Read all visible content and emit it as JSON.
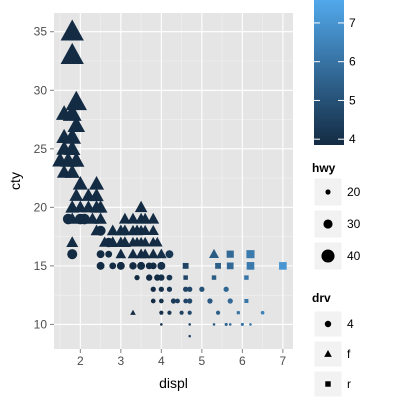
{
  "chart_data": {
    "type": "scatter",
    "xlabel": "displ",
    "ylabel": "cty",
    "xlim": [
      1.35,
      7.25
    ],
    "ylim": [
      7.9,
      36.6
    ],
    "xticks": [
      2,
      3,
      4,
      5,
      6,
      7
    ],
    "yticks": [
      10,
      15,
      20,
      25,
      30,
      35
    ],
    "grid": true,
    "background": "#e5e5e5",
    "grid_major": "#ffffff",
    "grid_minor": "#f2f2f2",
    "legends": {
      "color": {
        "scale_var": "hwy_x",
        "title": "",
        "ticks": [
          4,
          5,
          6,
          7
        ],
        "range": [
          3.85,
          7.85
        ],
        "low": "#132b43",
        "high": "#56b1f7",
        "placement": "right"
      },
      "size": {
        "title": "hwy",
        "entries": [
          {
            "label": "20",
            "value": 20
          },
          {
            "label": "30",
            "value": 30
          },
          {
            "label": "40",
            "value": 40
          }
        ],
        "placement": "right"
      },
      "shape": {
        "title": "drv",
        "entries": [
          {
            "label": "4",
            "shape": "circle"
          },
          {
            "label": "f",
            "shape": "triangle"
          },
          {
            "label": "r",
            "shape": "square"
          }
        ],
        "placement": "right"
      }
    },
    "points": [
      {
        "x": 1.8,
        "y": 35,
        "hwy": 44,
        "drv": "f",
        "c": 1.8
      },
      {
        "x": 1.8,
        "y": 33,
        "hwy": 44,
        "drv": "f",
        "c": 1.8
      },
      {
        "x": 1.9,
        "y": 29,
        "hwy": 41,
        "drv": "f",
        "c": 1.9
      },
      {
        "x": 1.6,
        "y": 28,
        "hwy": 33,
        "drv": "f",
        "c": 1.6
      },
      {
        "x": 1.8,
        "y": 28,
        "hwy": 37,
        "drv": "f",
        "c": 1.8
      },
      {
        "x": 1.9,
        "y": 27,
        "hwy": 35,
        "drv": "f",
        "c": 1.9
      },
      {
        "x": 1.6,
        "y": 26,
        "hwy": 32,
        "drv": "f",
        "c": 1.6
      },
      {
        "x": 1.8,
        "y": 26,
        "hwy": 35,
        "drv": "f",
        "c": 1.8
      },
      {
        "x": 1.6,
        "y": 25,
        "hwy": 32,
        "drv": "f",
        "c": 1.6
      },
      {
        "x": 1.8,
        "y": 25,
        "hwy": 33,
        "drv": "f",
        "c": 1.8
      },
      {
        "x": 1.5,
        "y": 24,
        "hwy": 32,
        "drv": "f",
        "c": 1.5
      },
      {
        "x": 1.7,
        "y": 24,
        "hwy": 33,
        "drv": "f",
        "c": 1.7
      },
      {
        "x": 1.9,
        "y": 24,
        "hwy": 33,
        "drv": "f",
        "c": 1.9
      },
      {
        "x": 1.6,
        "y": 23,
        "hwy": 30,
        "drv": "f",
        "c": 1.6
      },
      {
        "x": 1.8,
        "y": 23,
        "hwy": 31,
        "drv": "f",
        "c": 1.8
      },
      {
        "x": 2.0,
        "y": 22,
        "hwy": 31,
        "drv": "f",
        "c": 2.0
      },
      {
        "x": 2.4,
        "y": 22,
        "hwy": 31,
        "drv": "f",
        "c": 2.4
      },
      {
        "x": 1.9,
        "y": 21,
        "hwy": 29,
        "drv": "f",
        "c": 1.9
      },
      {
        "x": 2.2,
        "y": 21,
        "hwy": 29,
        "drv": "f",
        "c": 2.2
      },
      {
        "x": 2.4,
        "y": 21,
        "hwy": 30,
        "drv": "f",
        "c": 2.4
      },
      {
        "x": 1.8,
        "y": 20,
        "hwy": 29,
        "drv": "f",
        "c": 1.8
      },
      {
        "x": 2.0,
        "y": 20,
        "hwy": 28,
        "drv": "f",
        "c": 2.0
      },
      {
        "x": 2.2,
        "y": 20,
        "hwy": 28,
        "drv": "f",
        "c": 2.2
      },
      {
        "x": 2.4,
        "y": 20,
        "hwy": 29,
        "drv": "f",
        "c": 2.4
      },
      {
        "x": 2.5,
        "y": 20,
        "hwy": 29,
        "drv": "f",
        "c": 2.5
      },
      {
        "x": 1.7,
        "y": 19,
        "hwy": 27,
        "drv": "4",
        "c": 1.7
      },
      {
        "x": 1.8,
        "y": 19,
        "hwy": 27,
        "drv": "f",
        "c": 1.8
      },
      {
        "x": 2.0,
        "y": 19,
        "hwy": 27,
        "drv": "4",
        "c": 2.0
      },
      {
        "x": 2.1,
        "y": 19,
        "hwy": 27,
        "drv": "4",
        "c": 2.1
      },
      {
        "x": 2.3,
        "y": 19,
        "hwy": 27,
        "drv": "f",
        "c": 2.3
      },
      {
        "x": 2.5,
        "y": 19,
        "hwy": 27,
        "drv": "f",
        "c": 2.5
      },
      {
        "x": 2.4,
        "y": 18,
        "hwy": 26,
        "drv": "f",
        "c": 2.4
      },
      {
        "x": 2.5,
        "y": 18,
        "hwy": 26,
        "drv": "4",
        "c": 2.5
      },
      {
        "x": 2.6,
        "y": 17,
        "hwy": 25,
        "drv": "f",
        "c": 2.6
      },
      {
        "x": 1.8,
        "y": 17,
        "hwy": 26,
        "drv": "f",
        "c": 1.8
      },
      {
        "x": 2.7,
        "y": 17,
        "hwy": 25,
        "drv": "4",
        "c": 2.7
      },
      {
        "x": 2.8,
        "y": 18,
        "hwy": 26,
        "drv": "f",
        "c": 2.8
      },
      {
        "x": 2.8,
        "y": 17,
        "hwy": 26,
        "drv": "f",
        "c": 2.8
      },
      {
        "x": 3.0,
        "y": 18,
        "hwy": 26,
        "drv": "f",
        "c": 3.0
      },
      {
        "x": 3.0,
        "y": 17,
        "hwy": 25,
        "drv": "f",
        "c": 3.0
      },
      {
        "x": 3.1,
        "y": 18,
        "hwy": 26,
        "drv": "f",
        "c": 3.1
      },
      {
        "x": 3.1,
        "y": 17,
        "hwy": 26,
        "drv": "f",
        "c": 3.1
      },
      {
        "x": 3.3,
        "y": 18,
        "hwy": 25,
        "drv": "f",
        "c": 3.3
      },
      {
        "x": 3.3,
        "y": 17,
        "hwy": 24,
        "drv": "f",
        "c": 3.3
      },
      {
        "x": 3.4,
        "y": 18,
        "hwy": 26,
        "drv": "f",
        "c": 3.4
      },
      {
        "x": 3.4,
        "y": 17,
        "hwy": 24,
        "drv": "f",
        "c": 3.4
      },
      {
        "x": 3.5,
        "y": 18,
        "hwy": 25,
        "drv": "f",
        "c": 3.5
      },
      {
        "x": 3.5,
        "y": 17,
        "hwy": 24,
        "drv": "f",
        "c": 3.5
      },
      {
        "x": 3.6,
        "y": 18,
        "hwy": 25,
        "drv": "f",
        "c": 3.6
      },
      {
        "x": 3.6,
        "y": 17,
        "hwy": 24,
        "drv": "f",
        "c": 3.6
      },
      {
        "x": 3.8,
        "y": 18,
        "hwy": 25,
        "drv": "f",
        "c": 3.8
      },
      {
        "x": 3.8,
        "y": 17,
        "hwy": 24,
        "drv": "f",
        "c": 3.8
      },
      {
        "x": 3.9,
        "y": 17,
        "hwy": 24,
        "drv": "f",
        "c": 3.9
      },
      {
        "x": 3.1,
        "y": 19,
        "hwy": 26,
        "drv": "f",
        "c": 3.1
      },
      {
        "x": 3.3,
        "y": 19,
        "hwy": 26,
        "drv": "f",
        "c": 3.3
      },
      {
        "x": 3.5,
        "y": 19,
        "hwy": 26,
        "drv": "f",
        "c": 3.5
      },
      {
        "x": 3.6,
        "y": 19,
        "hwy": 26,
        "drv": "f",
        "c": 3.6
      },
      {
        "x": 3.8,
        "y": 19,
        "hwy": 26,
        "drv": "f",
        "c": 3.8
      },
      {
        "x": 3.0,
        "y": 16,
        "hwy": 24,
        "drv": "f",
        "c": 3.0
      },
      {
        "x": 3.3,
        "y": 16,
        "hwy": 24,
        "drv": "f",
        "c": 3.3
      },
      {
        "x": 3.5,
        "y": 16,
        "hwy": 24,
        "drv": "f",
        "c": 3.5
      },
      {
        "x": 3.6,
        "y": 16,
        "hwy": 24,
        "drv": "f",
        "c": 3.6
      },
      {
        "x": 3.8,
        "y": 16,
        "hwy": 24,
        "drv": "f",
        "c": 3.8
      },
      {
        "x": 4.0,
        "y": 16,
        "hwy": 24,
        "drv": "f",
        "c": 4.0
      },
      {
        "x": 3.5,
        "y": 20,
        "hwy": 27,
        "drv": "f",
        "c": 3.5
      },
      {
        "x": 1.8,
        "y": 16,
        "hwy": 26,
        "drv": "4",
        "c": 1.8
      },
      {
        "x": 2.5,
        "y": 16,
        "hwy": 22,
        "drv": "4",
        "c": 2.5
      },
      {
        "x": 2.7,
        "y": 16,
        "hwy": 20,
        "drv": "4",
        "c": 2.7
      },
      {
        "x": 2.5,
        "y": 15,
        "hwy": 22,
        "drv": "4",
        "c": 2.5
      },
      {
        "x": 2.8,
        "y": 15,
        "hwy": 20,
        "drv": "4",
        "c": 2.8
      },
      {
        "x": 3.0,
        "y": 15,
        "hwy": 22,
        "drv": "4",
        "c": 3.0
      },
      {
        "x": 3.3,
        "y": 15,
        "hwy": 21,
        "drv": "4",
        "c": 3.3
      },
      {
        "x": 3.5,
        "y": 15,
        "hwy": 22,
        "drv": "4",
        "c": 3.5
      },
      {
        "x": 3.7,
        "y": 15,
        "hwy": 20,
        "drv": "4",
        "c": 3.7
      },
      {
        "x": 3.8,
        "y": 15,
        "hwy": 20,
        "drv": "4",
        "c": 3.8
      },
      {
        "x": 4.0,
        "y": 15,
        "hwy": 22,
        "drv": "4",
        "c": 4.0
      },
      {
        "x": 4.0,
        "y": 15,
        "hwy": 20,
        "drv": "r",
        "c": 4.0
      },
      {
        "x": 4.2,
        "y": 16,
        "hwy": 22,
        "drv": "4",
        "c": 4.2
      },
      {
        "x": 3.7,
        "y": 14,
        "hwy": 19,
        "drv": "4",
        "c": 3.7
      },
      {
        "x": 3.9,
        "y": 14,
        "hwy": 19,
        "drv": "4",
        "c": 3.9
      },
      {
        "x": 4.0,
        "y": 14,
        "hwy": 19,
        "drv": "4",
        "c": 4.0
      },
      {
        "x": 4.2,
        "y": 14,
        "hwy": 18,
        "drv": "4",
        "c": 4.2
      },
      {
        "x": 3.4,
        "y": 14,
        "hwy": 17,
        "drv": "4",
        "c": 3.4
      },
      {
        "x": 3.8,
        "y": 13,
        "hwy": 17,
        "drv": "4",
        "c": 3.8
      },
      {
        "x": 4.0,
        "y": 13,
        "hwy": 17,
        "drv": "4",
        "c": 4.0
      },
      {
        "x": 4.2,
        "y": 13,
        "hwy": 17,
        "drv": "4",
        "c": 4.2
      },
      {
        "x": 3.8,
        "y": 12,
        "hwy": 16,
        "drv": "4",
        "c": 3.8
      },
      {
        "x": 4.0,
        "y": 12,
        "hwy": 16,
        "drv": "4",
        "c": 4.0
      },
      {
        "x": 3.3,
        "y": 11,
        "hwy": 16,
        "drv": "f",
        "c": 3.3
      },
      {
        "x": 4.0,
        "y": 11,
        "hwy": 15,
        "drv": "4",
        "c": 4.0
      },
      {
        "x": 4.6,
        "y": 15,
        "hwy": 20,
        "drv": "r",
        "c": 4.6
      },
      {
        "x": 5.3,
        "y": 16,
        "hwy": 23,
        "drv": "f",
        "c": 5.3
      },
      {
        "x": 5.7,
        "y": 16,
        "hwy": 23,
        "drv": "r",
        "c": 5.7
      },
      {
        "x": 6.2,
        "y": 16,
        "hwy": 25,
        "drv": "r",
        "c": 6.2
      },
      {
        "x": 5.7,
        "y": 15,
        "hwy": 22,
        "drv": "r",
        "c": 5.7
      },
      {
        "x": 6.2,
        "y": 15,
        "hwy": 24,
        "drv": "r",
        "c": 6.2
      },
      {
        "x": 7.0,
        "y": 15,
        "hwy": 24,
        "drv": "r",
        "c": 7.0
      },
      {
        "x": 5.4,
        "y": 15,
        "hwy": 20,
        "drv": "r",
        "c": 5.4
      },
      {
        "x": 4.6,
        "y": 14,
        "hwy": 17,
        "drv": "r",
        "c": 4.6
      },
      {
        "x": 5.3,
        "y": 14,
        "hwy": 17,
        "drv": "r",
        "c": 5.3
      },
      {
        "x": 6.1,
        "y": 14,
        "hwy": 17,
        "drv": "r",
        "c": 6.1
      },
      {
        "x": 4.6,
        "y": 13,
        "hwy": 17,
        "drv": "4",
        "c": 4.6
      },
      {
        "x": 4.7,
        "y": 13,
        "hwy": 17,
        "drv": "4",
        "c": 4.7
      },
      {
        "x": 5.0,
        "y": 13,
        "hwy": 17,
        "drv": "4",
        "c": 5.0
      },
      {
        "x": 5.6,
        "y": 13,
        "hwy": 17,
        "drv": "4",
        "c": 5.6
      },
      {
        "x": 4.3,
        "y": 12,
        "hwy": 17,
        "drv": "4",
        "c": 4.3
      },
      {
        "x": 4.4,
        "y": 12,
        "hwy": 16,
        "drv": "4",
        "c": 4.4
      },
      {
        "x": 4.6,
        "y": 12,
        "hwy": 16,
        "drv": "4",
        "c": 4.6
      },
      {
        "x": 4.7,
        "y": 12,
        "hwy": 17,
        "drv": "4",
        "c": 4.7
      },
      {
        "x": 5.2,
        "y": 12,
        "hwy": 17,
        "drv": "4",
        "c": 5.2
      },
      {
        "x": 5.7,
        "y": 12,
        "hwy": 17,
        "drv": "4",
        "c": 5.7
      },
      {
        "x": 6.1,
        "y": 12,
        "hwy": 16,
        "drv": "r",
        "c": 6.1
      },
      {
        "x": 4.2,
        "y": 11,
        "hwy": 15,
        "drv": "4",
        "c": 4.2
      },
      {
        "x": 4.5,
        "y": 11,
        "hwy": 15,
        "drv": "4",
        "c": 4.5
      },
      {
        "x": 4.7,
        "y": 11,
        "hwy": 15,
        "drv": "4",
        "c": 4.7
      },
      {
        "x": 5.4,
        "y": 11,
        "hwy": 15,
        "drv": "4",
        "c": 5.4
      },
      {
        "x": 5.9,
        "y": 11,
        "hwy": 14,
        "drv": "r",
        "c": 5.9
      },
      {
        "x": 6.5,
        "y": 11,
        "hwy": 14,
        "drv": "4",
        "c": 6.5
      },
      {
        "x": 4.0,
        "y": 10,
        "hwy": 12,
        "drv": "4",
        "c": 4.0
      },
      {
        "x": 4.7,
        "y": 10,
        "hwy": 12,
        "drv": "4",
        "c": 4.7
      },
      {
        "x": 5.3,
        "y": 10,
        "hwy": 12,
        "drv": "4",
        "c": 5.3
      },
      {
        "x": 5.6,
        "y": 10,
        "hwy": 13,
        "drv": "4",
        "c": 5.6
      },
      {
        "x": 5.7,
        "y": 10,
        "hwy": 12,
        "drv": "4",
        "c": 5.7
      },
      {
        "x": 6.0,
        "y": 10,
        "hwy": 13,
        "drv": "4",
        "c": 6.0
      },
      {
        "x": 6.2,
        "y": 10,
        "hwy": 12,
        "drv": "4",
        "c": 6.2
      },
      {
        "x": 4.7,
        "y": 9,
        "hwy": 12,
        "drv": "4",
        "c": 4.7
      }
    ]
  }
}
